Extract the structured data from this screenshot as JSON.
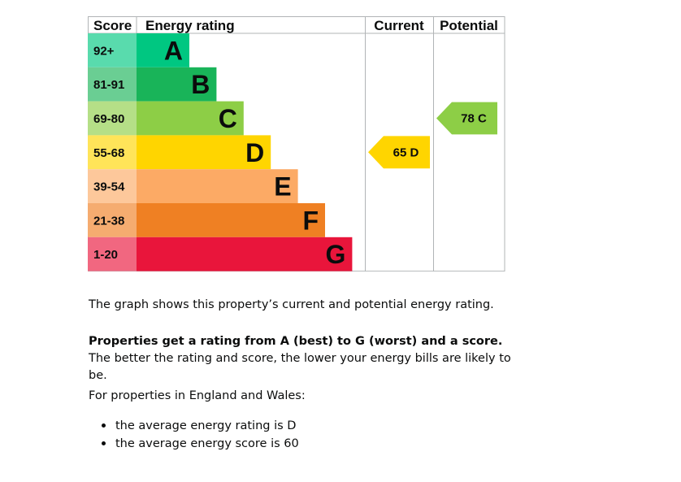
{
  "chart_data": {
    "type": "table",
    "columns": [
      "Score",
      "Energy rating",
      "Current",
      "Potential"
    ],
    "bands": [
      {
        "score": "92+",
        "letter": "A",
        "color": "#00c781"
      },
      {
        "score": "81-91",
        "letter": "B",
        "color": "#19b459"
      },
      {
        "score": "69-80",
        "letter": "C",
        "color": "#8dce46"
      },
      {
        "score": "55-68",
        "letter": "D",
        "color": "#ffd500"
      },
      {
        "score": "39-54",
        "letter": "E",
        "color": "#fcaa65"
      },
      {
        "score": "21-38",
        "letter": "F",
        "color": "#ef8023"
      },
      {
        "score": "1-20",
        "letter": "G",
        "color": "#e9153b"
      }
    ],
    "current": {
      "score": 65,
      "letter": "D",
      "label": "65 D",
      "color": "#ffd500"
    },
    "potential": {
      "score": 78,
      "letter": "C",
      "label": "78 C",
      "color": "#8dce46"
    }
  },
  "text": {
    "intro": "The graph shows this property’s current and potential energy rating.",
    "rating_bold": "Properties get a rating from A (best) to G (worst) and a score.",
    "rating_rest": " The better the rating and score, the lower your energy bills are likely to be.",
    "region": "For properties in England and Wales:",
    "averages": [
      "the average energy rating is D",
      "the average energy score is 60"
    ]
  }
}
